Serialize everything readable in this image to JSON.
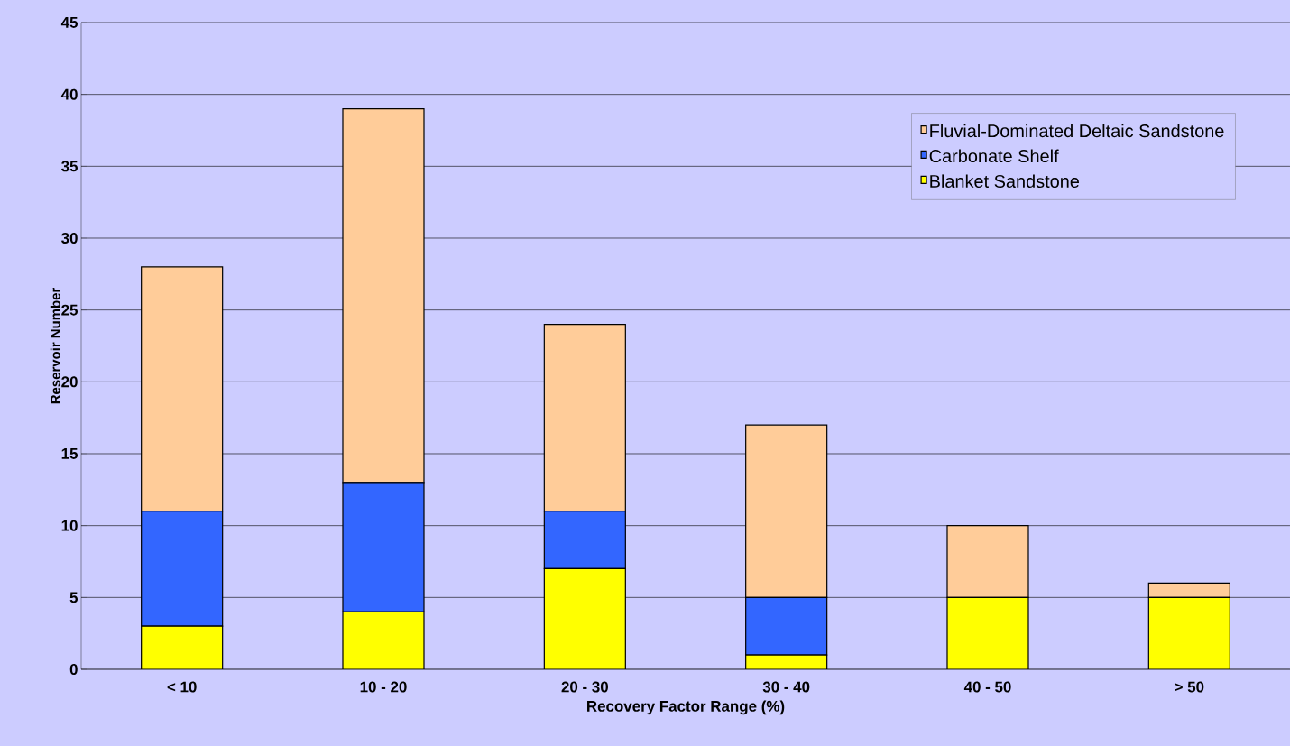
{
  "chart_data": {
    "type": "bar",
    "stacked": true,
    "xlabel": "Recovery Factor Range (%)",
    "ylabel": "Reservoir Number",
    "categories": [
      "< 10",
      "10 - 20",
      "20 - 30",
      "30 - 40",
      "40 - 50",
      "> 50"
    ],
    "series": [
      {
        "name": "Blanket Sandstone",
        "color": "#ffff00",
        "values": [
          3,
          4,
          7,
          1,
          5,
          5
        ]
      },
      {
        "name": "Carbonate Shelf",
        "color": "#3366ff",
        "values": [
          8,
          9,
          4,
          4,
          0,
          0
        ]
      },
      {
        "name": "Fluvial-Dominated Deltaic Sandstone",
        "color": "#ffcc99",
        "values": [
          17,
          26,
          13,
          12,
          5,
          1
        ]
      }
    ],
    "ylim": [
      0,
      45
    ],
    "yticks": [
      0,
      5,
      10,
      15,
      20,
      25,
      30,
      35,
      40,
      45
    ],
    "grid": "y",
    "legend": "top right"
  }
}
